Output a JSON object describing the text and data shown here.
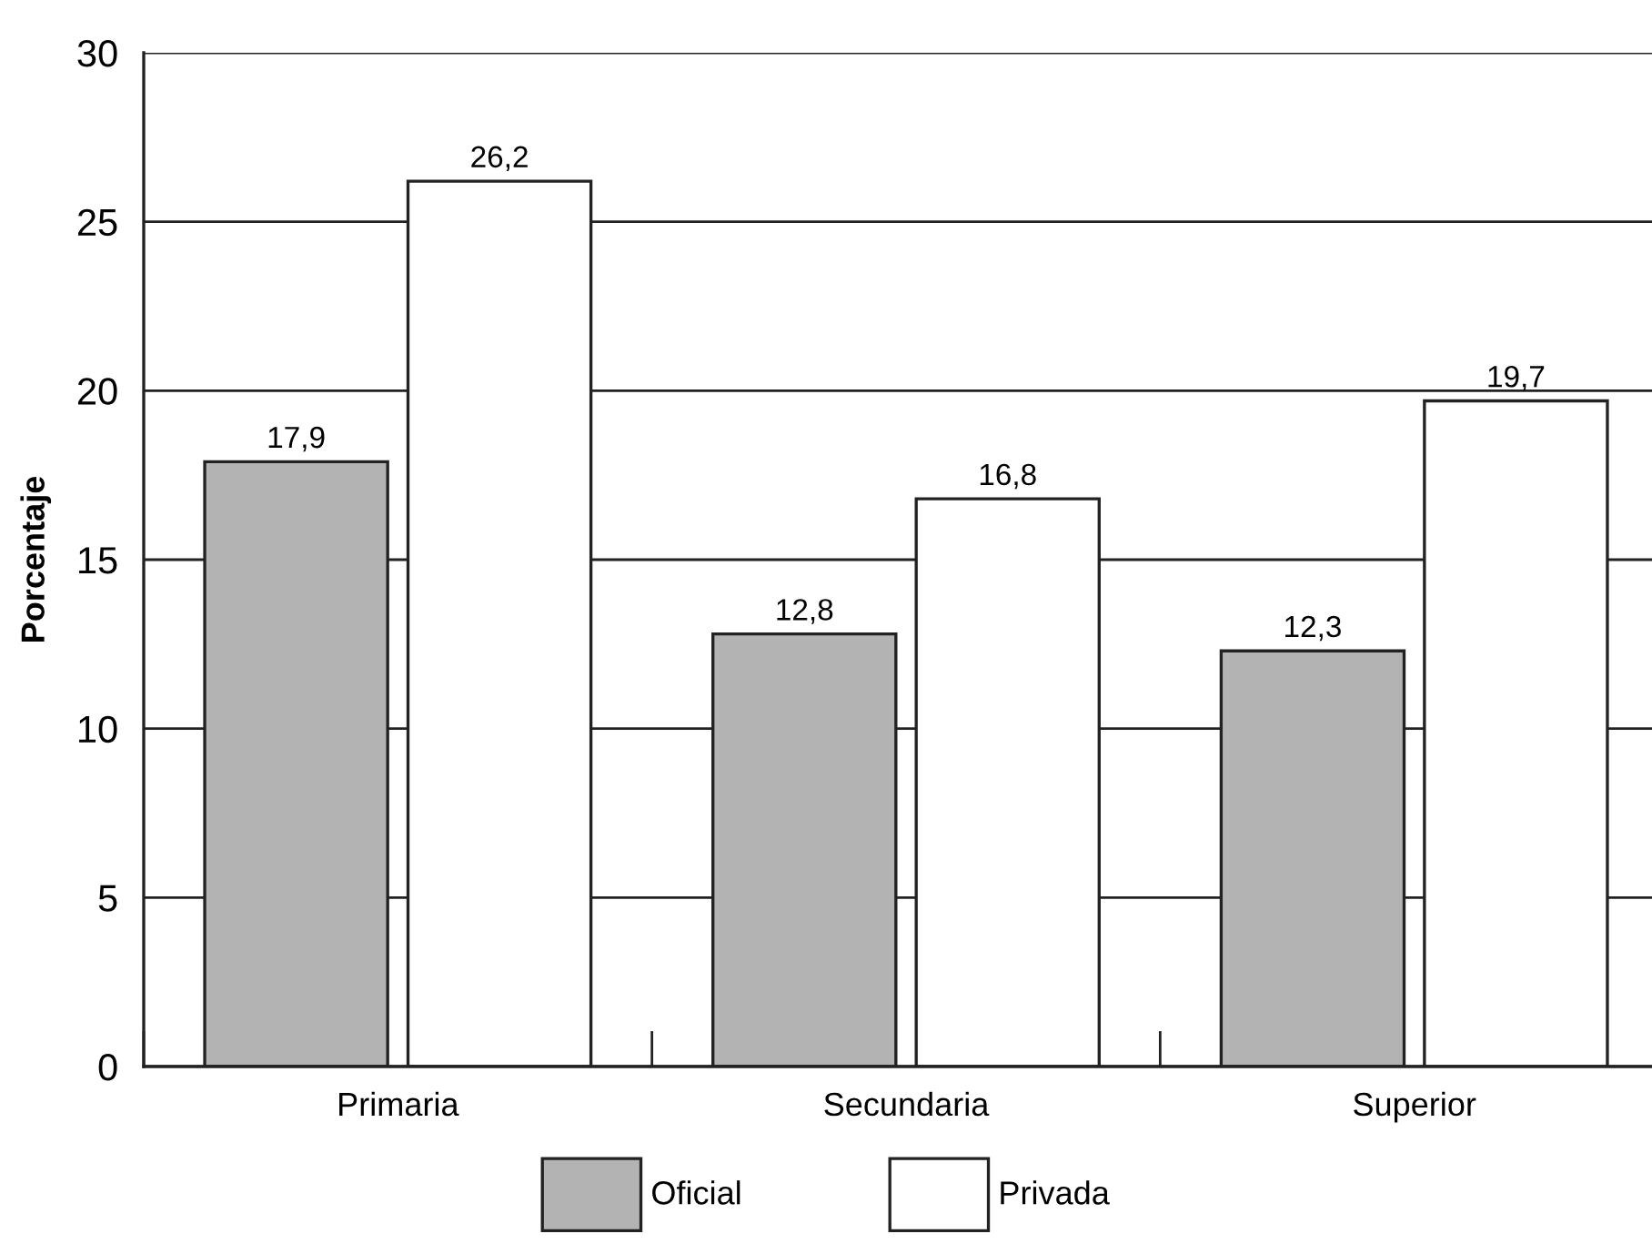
{
  "chart_data": {
    "type": "bar",
    "ylabel": "Porcentaje",
    "categories": [
      "Primaria",
      "Secundaria",
      "Superior"
    ],
    "series": [
      {
        "name": "Oficial",
        "color": "#b3b3b3",
        "values": [
          17.9,
          12.8,
          12.3
        ],
        "value_labels": [
          "17,9",
          "12,8",
          "12,3"
        ]
      },
      {
        "name": "Privada",
        "color": "#ffffff",
        "values": [
          26.2,
          16.8,
          19.7
        ],
        "value_labels": [
          "26,2",
          "16,8",
          "19,7"
        ]
      }
    ],
    "ylim": [
      0,
      30
    ],
    "yticks": [
      0,
      5,
      10,
      15,
      20,
      25,
      30
    ],
    "grid": "y",
    "legend": "bottom"
  }
}
